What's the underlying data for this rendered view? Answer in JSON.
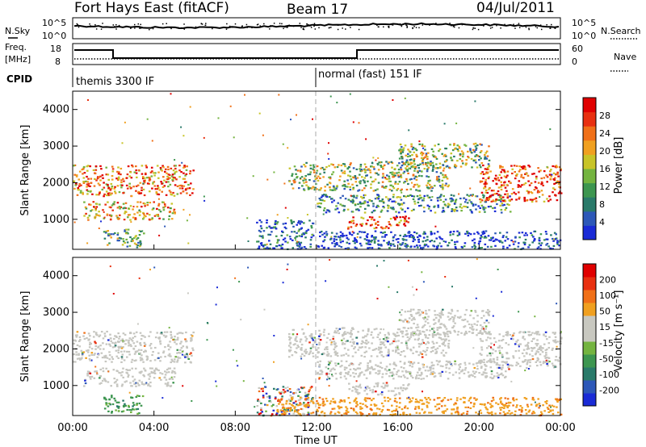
{
  "header": {
    "station": "Fort Hays East (fitACF)",
    "beam": "Beam 17",
    "date": "04/Jul/2011"
  },
  "aux_panels": {
    "nsky_label": "N.Sky",
    "nsky_ticks": [
      "10^5",
      "10^0"
    ],
    "nsearch_label": "N.Search",
    "nsearch_ticks": [
      "10^5",
      "10^0"
    ],
    "freq_label_1": "Freq.",
    "freq_label_2": "[MHz]",
    "freq_ticks": [
      "18",
      "8"
    ],
    "nave_label": "Nave",
    "nave_ticks": [
      "60",
      "0"
    ],
    "cpid_label": "CPID",
    "cpid_segments": [
      {
        "start": 0,
        "label": "themis 3300 IF"
      },
      {
        "start": 12,
        "label": "normal (fast) 151 IF"
      }
    ]
  },
  "axes": {
    "ylabel": "Slant Range [km]",
    "xlabel": "Time UT",
    "y_ticks": [
      "4000",
      "3000",
      "2000",
      "1000"
    ],
    "x_ticks": [
      "00:00",
      "04:00",
      "08:00",
      "12:00",
      "16:00",
      "20:00",
      "00:00"
    ]
  },
  "chart_data": [
    {
      "type": "heatmap",
      "name": "power",
      "x_range_hours": [
        0,
        24
      ],
      "y_range_km": [
        180,
        4500
      ],
      "colorbar": {
        "label": "Power [dB]",
        "ticks": [
          "28",
          "24",
          "20",
          "16",
          "12",
          "8",
          "4"
        ],
        "colors": [
          "#1a2bd6",
          "#2d58b8",
          "#2a7a6a",
          "#3d9650",
          "#74b440",
          "#c8c428",
          "#f0a020",
          "#f07018",
          "#e83010",
          "#e00000"
        ]
      },
      "bands": [
        {
          "t0": 0.0,
          "t1": 5.9,
          "r0": 1650,
          "r1": 2500,
          "level": 0.75
        },
        {
          "t0": 0.5,
          "t1": 5.0,
          "r0": 1000,
          "r1": 1500,
          "level": 0.65
        },
        {
          "t0": 1.5,
          "t1": 3.5,
          "r0": 250,
          "r1": 750,
          "level": 0.4
        },
        {
          "t0": 9.0,
          "t1": 11.8,
          "r0": 200,
          "r1": 1000,
          "level": 0.12
        },
        {
          "t0": 10.6,
          "t1": 18.5,
          "r0": 1800,
          "r1": 2600,
          "level": 0.45
        },
        {
          "t0": 12.0,
          "t1": 21.5,
          "r0": 1200,
          "r1": 1700,
          "level": 0.3
        },
        {
          "t0": 13.5,
          "t1": 16.5,
          "r0": 750,
          "r1": 1100,
          "level": 0.8
        },
        {
          "t0": 16.0,
          "t1": 20.5,
          "r0": 2400,
          "r1": 3100,
          "level": 0.45
        },
        {
          "t0": 20.0,
          "t1": 24.0,
          "r0": 1500,
          "r1": 2500,
          "level": 0.85
        },
        {
          "t0": 12.0,
          "t1": 24.0,
          "r0": 200,
          "r1": 700,
          "level": 0.08
        }
      ]
    },
    {
      "type": "heatmap",
      "name": "velocity",
      "x_range_hours": [
        0,
        24
      ],
      "y_range_km": [
        180,
        4500
      ],
      "colorbar": {
        "label": "Velocity [m s⁻¹]",
        "ticks": [
          "200",
          "100",
          "50",
          "15",
          "-15",
          "-50",
          "-100",
          "-200"
        ],
        "colors": [
          "#1a2bd6",
          "#2d58b8",
          "#2a7a6a",
          "#3d9650",
          "#74b440",
          "#c8c8c0",
          "#c8c8c0",
          "#f0a020",
          "#f07018",
          "#e83010",
          "#e00000"
        ]
      },
      "bands": [
        {
          "t0": 0.0,
          "t1": 5.9,
          "r0": 1650,
          "r1": 2500,
          "kind": "ground"
        },
        {
          "t0": 0.5,
          "t1": 5.0,
          "r0": 1000,
          "r1": 1500,
          "kind": "ground"
        },
        {
          "t0": 1.5,
          "t1": 3.5,
          "r0": 250,
          "r1": 750,
          "kind": "green"
        },
        {
          "t0": 9.0,
          "t1": 11.8,
          "r0": 200,
          "r1": 1000,
          "kind": "mixed"
        },
        {
          "t0": 10.6,
          "t1": 18.5,
          "r0": 1800,
          "r1": 2600,
          "kind": "ground"
        },
        {
          "t0": 12.0,
          "t1": 21.5,
          "r0": 1200,
          "r1": 1700,
          "kind": "ground"
        },
        {
          "t0": 13.5,
          "t1": 16.5,
          "r0": 750,
          "r1": 1100,
          "kind": "ground"
        },
        {
          "t0": 16.0,
          "t1": 20.5,
          "r0": 2400,
          "r1": 3100,
          "kind": "ground"
        },
        {
          "t0": 20.0,
          "t1": 24.0,
          "r0": 1500,
          "r1": 2500,
          "kind": "ground"
        },
        {
          "t0": 10.0,
          "t1": 24.0,
          "r0": 200,
          "r1": 700,
          "kind": "orange"
        }
      ]
    }
  ]
}
